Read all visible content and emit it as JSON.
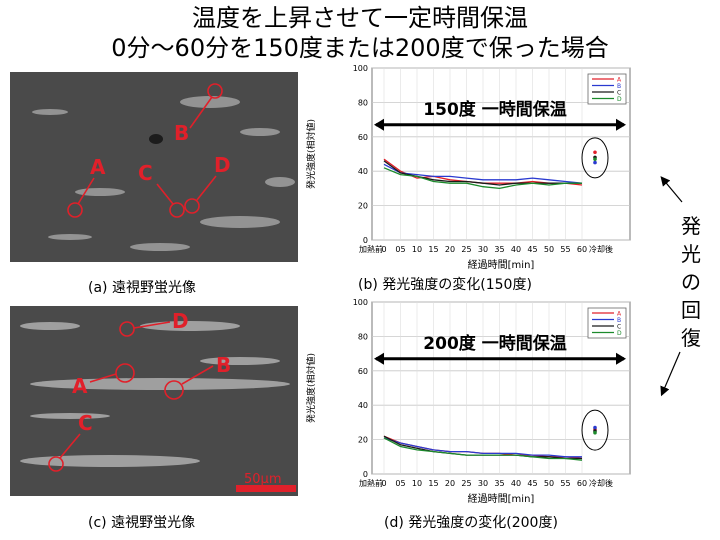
{
  "title": {
    "line1": "温度を上昇させて一定時間保温",
    "line2": "0分～60分を150度または200度で保った場合"
  },
  "images": [
    {
      "caption": "(a)  遠視野蛍光像",
      "labels": [
        "A",
        "B",
        "C",
        "D"
      ]
    },
    {
      "caption": "(c)  遠視野蛍光像",
      "labels": [
        "D",
        "B",
        "A",
        "C"
      ],
      "scale_label": "50μm"
    }
  ],
  "chart_data": [
    {
      "type": "line",
      "caption": "(b)  発光強度の変化(150度)",
      "annotation": "150度  一時間保温",
      "ylabel": "発光強度(相対値)",
      "xlabel": "経過時間[min]",
      "x_ticks": [
        "加熱前",
        "0",
        "05",
        "10",
        "15",
        "20",
        "25",
        "30",
        "35",
        "40",
        "45",
        "50",
        "55",
        "60",
        "冷却後"
      ],
      "x": [
        0,
        5,
        10,
        15,
        20,
        25,
        30,
        35,
        40,
        45,
        50,
        55,
        60
      ],
      "ylim": [
        0,
        100
      ],
      "y_ticks": [
        0,
        20,
        40,
        60,
        80,
        100
      ],
      "grid": true,
      "legend": [
        "A",
        "B",
        "C",
        "D"
      ],
      "series": [
        {
          "name": "A",
          "color": "#e0202a",
          "values": [
            47,
            40,
            36,
            37,
            35,
            34,
            33,
            33,
            33,
            34,
            33,
            33,
            32
          ],
          "after": 51
        },
        {
          "name": "B",
          "color": "#2a3ad0",
          "values": [
            44,
            39,
            38,
            37,
            37,
            36,
            35,
            35,
            35,
            36,
            35,
            34,
            33
          ],
          "after": 45
        },
        {
          "name": "C",
          "color": "#1a1a1a",
          "values": [
            46,
            39,
            37,
            35,
            34,
            34,
            33,
            32,
            33,
            33,
            33,
            33,
            33
          ],
          "after": 48
        },
        {
          "name": "D",
          "color": "#1c8a2c",
          "values": [
            42,
            38,
            37,
            34,
            33,
            33,
            31,
            30,
            32,
            33,
            32,
            33,
            33
          ],
          "after": 47
        }
      ]
    },
    {
      "type": "line",
      "caption": "(d)  発光強度の変化(200度)",
      "annotation": "200度  一時間保温",
      "ylabel": "発光強度(相対値)",
      "xlabel": "経過時間[min]",
      "x_ticks": [
        "加熱前",
        "0",
        "05",
        "10",
        "15",
        "20",
        "25",
        "30",
        "35",
        "40",
        "45",
        "50",
        "55",
        "60",
        "冷却後"
      ],
      "x": [
        0,
        5,
        10,
        15,
        20,
        25,
        30,
        35,
        40,
        45,
        50,
        55,
        60
      ],
      "ylim": [
        0,
        100
      ],
      "y_ticks": [
        0,
        20,
        40,
        60,
        80,
        100
      ],
      "grid": true,
      "legend": [
        "A",
        "B",
        "C",
        "D"
      ],
      "series": [
        {
          "name": "A",
          "color": "#e0202a",
          "values": [
            22,
            18,
            16,
            14,
            13,
            13,
            12,
            12,
            11,
            11,
            10,
            10,
            9
          ],
          "after": 26
        },
        {
          "name": "B",
          "color": "#2a3ad0",
          "values": [
            21,
            18,
            16,
            14,
            13,
            13,
            12,
            12,
            12,
            11,
            11,
            10,
            10
          ],
          "after": 27
        },
        {
          "name": "C",
          "color": "#1a1a1a",
          "values": [
            22,
            17,
            15,
            13,
            12,
            11,
            11,
            11,
            11,
            10,
            10,
            9,
            9
          ],
          "after": 25
        },
        {
          "name": "D",
          "color": "#1c8a2c",
          "values": [
            21,
            16,
            14,
            13,
            12,
            11,
            11,
            11,
            11,
            10,
            9,
            9,
            8
          ],
          "after": 24
        }
      ]
    }
  ],
  "side_text": [
    "発",
    "光",
    "の",
    "回",
    "復"
  ],
  "colors": {
    "marker": "#e0202a",
    "image_bg": "#4a4a4a"
  }
}
